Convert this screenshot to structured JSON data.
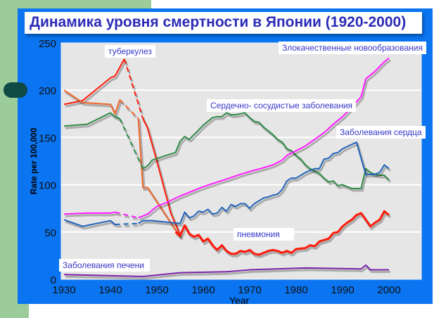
{
  "colors": {
    "panel": "#0b74f0",
    "plot_bg": "#e6e6e6",
    "title": "#2b2bb8"
  },
  "chart_data": {
    "type": "line",
    "title": "Динамика уровня смертности в Японии (1920-2000)",
    "xlabel": "Year",
    "ylabel": "Rate per 100,000",
    "xlim": [
      1928.5,
      2006.5
    ],
    "ylim": [
      0,
      250
    ],
    "xticks": [
      1930,
      1940,
      1950,
      1960,
      1970,
      1980,
      1990,
      2000
    ],
    "yticks": [
      0,
      50,
      100,
      150,
      200,
      250
    ],
    "grid": true,
    "series": [
      {
        "name": "туберкулез",
        "color": "#ff1a0a",
        "width": 2,
        "segments": [
          {
            "dashed": false,
            "points": [
              [
                1930,
                185
              ],
              [
                1934,
                189
              ],
              [
                1940,
                213
              ],
              [
                1941,
                215
              ],
              [
                1943,
                233
              ]
            ]
          },
          {
            "dashed": true,
            "points": [
              [
                1943,
                233
              ],
              [
                1947,
                170
              ]
            ]
          },
          {
            "dashed": false,
            "points": [
              [
                1947,
                170
              ],
              [
                1948,
                160
              ],
              [
                1950,
                125
              ],
              [
                1953,
                70
              ],
              [
                1955,
                47
              ]
            ]
          }
        ]
      },
      {
        "name": "pneumonia-early",
        "color": "#f2662a",
        "width": 2,
        "segments": [
          {
            "dashed": false,
            "points": [
              [
                1930,
                200
              ],
              [
                1934,
                187
              ],
              [
                1940,
                185
              ],
              [
                1941,
                175
              ],
              [
                1942,
                190
              ]
            ]
          },
          {
            "dashed": true,
            "points": [
              [
                1942,
                190
              ],
              [
                1946,
                170
              ]
            ]
          },
          {
            "dashed": false,
            "points": [
              [
                1946,
                170
              ],
              [
                1947,
                97
              ],
              [
                1948,
                97
              ],
              [
                1955,
                45
              ]
            ]
          }
        ]
      },
      {
        "name": "Сердечно- сосудистые заболевания",
        "color": "#2e8b46",
        "width": 2,
        "segments": [
          {
            "dashed": false,
            "points": [
              [
                1930,
                162
              ],
              [
                1935,
                164
              ],
              [
                1940,
                176
              ],
              [
                1941,
                172
              ],
              [
                1942,
                170
              ]
            ]
          },
          {
            "dashed": true,
            "points": [
              [
                1942,
                170
              ],
              [
                1947,
                117
              ]
            ]
          },
          {
            "dashed": false,
            "points": [
              [
                1947,
                117
              ],
              [
                1948,
                120
              ],
              [
                1949,
                126
              ],
              [
                1952,
                131
              ],
              [
                1954,
                134
              ],
              [
                1955,
                146
              ],
              [
                1956,
                151
              ],
              [
                1957,
                148
              ],
              [
                1960,
                163
              ],
              [
                1962,
                171
              ],
              [
                1963,
                172
              ],
              [
                1964,
                172
              ],
              [
                1965,
                176
              ],
              [
                1966,
                174
              ],
              [
                1967,
                174
              ],
              [
                1968,
                175
              ],
              [
                1969,
                176
              ],
              [
                1970,
                171
              ],
              [
                1971,
                167
              ],
              [
                1972,
                166
              ],
              [
                1973,
                161
              ],
              [
                1975,
                153
              ],
              [
                1976,
                148
              ],
              [
                1977,
                145
              ],
              [
                1978,
                138
              ],
              [
                1979,
                136
              ],
              [
                1980,
                131
              ],
              [
                1981,
                127
              ],
              [
                1982,
                121
              ],
              [
                1983,
                117
              ],
              [
                1985,
                112
              ],
              [
                1986,
                107
              ],
              [
                1987,
                103
              ],
              [
                1988,
                104
              ],
              [
                1989,
                99
              ],
              [
                1990,
                100
              ],
              [
                1991,
                98
              ],
              [
                1992,
                96
              ],
              [
                1994,
                96
              ],
              [
                1995,
                117
              ],
              [
                1996,
                113
              ],
              [
                1997,
                111
              ],
              [
                1998,
                110
              ],
              [
                1999,
                110
              ],
              [
                2000,
                105
              ]
            ]
          }
        ]
      },
      {
        "name": "Злокачественные новообразования",
        "color": "#ff1aff",
        "width": 2,
        "segments": [
          {
            "dashed": false,
            "points": [
              [
                1930,
                69
              ],
              [
                1935,
                70
              ],
              [
                1940,
                70
              ],
              [
                1941,
                71
              ]
            ]
          },
          {
            "dashed": true,
            "points": [
              [
                1941,
                71
              ],
              [
                1946,
                65
              ]
            ]
          },
          {
            "dashed": false,
            "points": [
              [
                1946,
                65
              ],
              [
                1948,
                69
              ],
              [
                1950,
                77
              ],
              [
                1952,
                81
              ],
              [
                1955,
                88
              ],
              [
                1958,
                94
              ],
              [
                1960,
                98
              ],
              [
                1965,
                106
              ],
              [
                1968,
                111
              ],
              [
                1970,
                114
              ],
              [
                1973,
                118
              ],
              [
                1975,
                121
              ],
              [
                1977,
                126
              ],
              [
                1978,
                131
              ],
              [
                1980,
                136
              ],
              [
                1982,
                141
              ],
              [
                1984,
                148
              ],
              [
                1986,
                155
              ],
              [
                1988,
                164
              ],
              [
                1990,
                172
              ],
              [
                1992,
                182
              ],
              [
                1994,
                193
              ],
              [
                1995,
                212
              ],
              [
                1997,
                220
              ],
              [
                1999,
                230
              ],
              [
                2000,
                234
              ]
            ]
          }
        ]
      },
      {
        "name": "Заболевания сердца",
        "color": "#1f62b8",
        "width": 2,
        "segments": [
          {
            "dashed": false,
            "points": [
              [
                1930,
                63
              ],
              [
                1934,
                56
              ],
              [
                1940,
                62
              ],
              [
                1941,
                58
              ]
            ]
          },
          {
            "dashed": true,
            "points": [
              [
                1941,
                58
              ],
              [
                1946,
                59
              ]
            ]
          },
          {
            "dashed": false,
            "points": [
              [
                1946,
                59
              ],
              [
                1947,
                62
              ],
              [
                1949,
                62
              ],
              [
                1955,
                59
              ],
              [
                1956,
                71
              ],
              [
                1957,
                65
              ],
              [
                1958,
                67
              ],
              [
                1959,
                72
              ],
              [
                1960,
                71
              ],
              [
                1961,
                74
              ],
              [
                1962,
                69
              ],
              [
                1963,
                70
              ],
              [
                1964,
                76
              ],
              [
                1965,
                72
              ],
              [
                1966,
                79
              ],
              [
                1967,
                77
              ],
              [
                1968,
                80
              ],
              [
                1969,
                80
              ],
              [
                1970,
                75
              ],
              [
                1971,
                80
              ],
              [
                1972,
                83
              ],
              [
                1973,
                86
              ],
              [
                1974,
                87
              ],
              [
                1975,
                89
              ],
              [
                1976,
                90
              ],
              [
                1977,
                95
              ],
              [
                1978,
                104
              ],
              [
                1979,
                107
              ],
              [
                1980,
                107
              ],
              [
                1982,
                113
              ],
              [
                1984,
                117
              ],
              [
                1985,
                117
              ],
              [
                1986,
                127
              ],
              [
                1987,
                128
              ],
              [
                1988,
                133
              ],
              [
                1989,
                134
              ],
              [
                1990,
                138
              ],
              [
                1993,
                145
              ],
              [
                1995,
                111
              ],
              [
                1997,
                111
              ],
              [
                1998,
                113
              ],
              [
                1999,
                121
              ],
              [
                2000,
                117
              ]
            ]
          }
        ]
      },
      {
        "name": "пневмония",
        "color": "#ff1a0a",
        "width": 3,
        "segments": [
          {
            "dashed": false,
            "points": [
              [
                1954,
                50
              ],
              [
                1955,
                46
              ],
              [
                1956,
                57
              ],
              [
                1957,
                48
              ],
              [
                1958,
                45
              ],
              [
                1959,
                47
              ],
              [
                1960,
                40
              ],
              [
                1961,
                43
              ],
              [
                1962,
                36
              ],
              [
                1963,
                31
              ],
              [
                1964,
                36
              ],
              [
                1965,
                30
              ],
              [
                1966,
                27
              ],
              [
                1967,
                27
              ],
              [
                1968,
                30
              ],
              [
                1969,
                29
              ],
              [
                1970,
                31
              ],
              [
                1971,
                27
              ],
              [
                1972,
                26
              ],
              [
                1973,
                28
              ],
              [
                1974,
                30
              ],
              [
                1975,
                31
              ],
              [
                1976,
                30
              ],
              [
                1977,
                28
              ],
              [
                1978,
                30
              ],
              [
                1979,
                28
              ],
              [
                1980,
                32
              ],
              [
                1982,
                33
              ],
              [
                1983,
                36
              ],
              [
                1984,
                35
              ],
              [
                1985,
                40
              ],
              [
                1987,
                43
              ],
              [
                1988,
                49
              ],
              [
                1989,
                50
              ],
              [
                1990,
                56
              ],
              [
                1991,
                60
              ],
              [
                1992,
                63
              ],
              [
                1993,
                68
              ],
              [
                1994,
                70
              ],
              [
                1995,
                63
              ],
              [
                1996,
                56
              ],
              [
                1997,
                60
              ],
              [
                1998,
                63
              ],
              [
                1999,
                72
              ],
              [
                2000,
                68
              ]
            ]
          }
        ]
      },
      {
        "name": "Заболевания печени",
        "color": "#7a22a8",
        "width": 2,
        "segments": [
          {
            "dashed": false,
            "points": [
              [
                1930,
                5
              ],
              [
                1947,
                3
              ],
              [
                1955,
                7
              ],
              [
                1965,
                8
              ],
              [
                1970,
                10
              ],
              [
                1982,
                12
              ],
              [
                1994,
                11
              ],
              [
                1995,
                15
              ],
              [
                1996,
                10
              ],
              [
                2000,
                10
              ]
            ]
          }
        ]
      }
    ],
    "annotations": {
      "tb": "туберкулез",
      "cancer": "Злокачественные новообразования",
      "cvd": "Сердечно- сосудистые заболевания",
      "heart": "Заболевания сердца",
      "pneumonia": "пневмония",
      "liver": "Заболевания печени"
    }
  }
}
